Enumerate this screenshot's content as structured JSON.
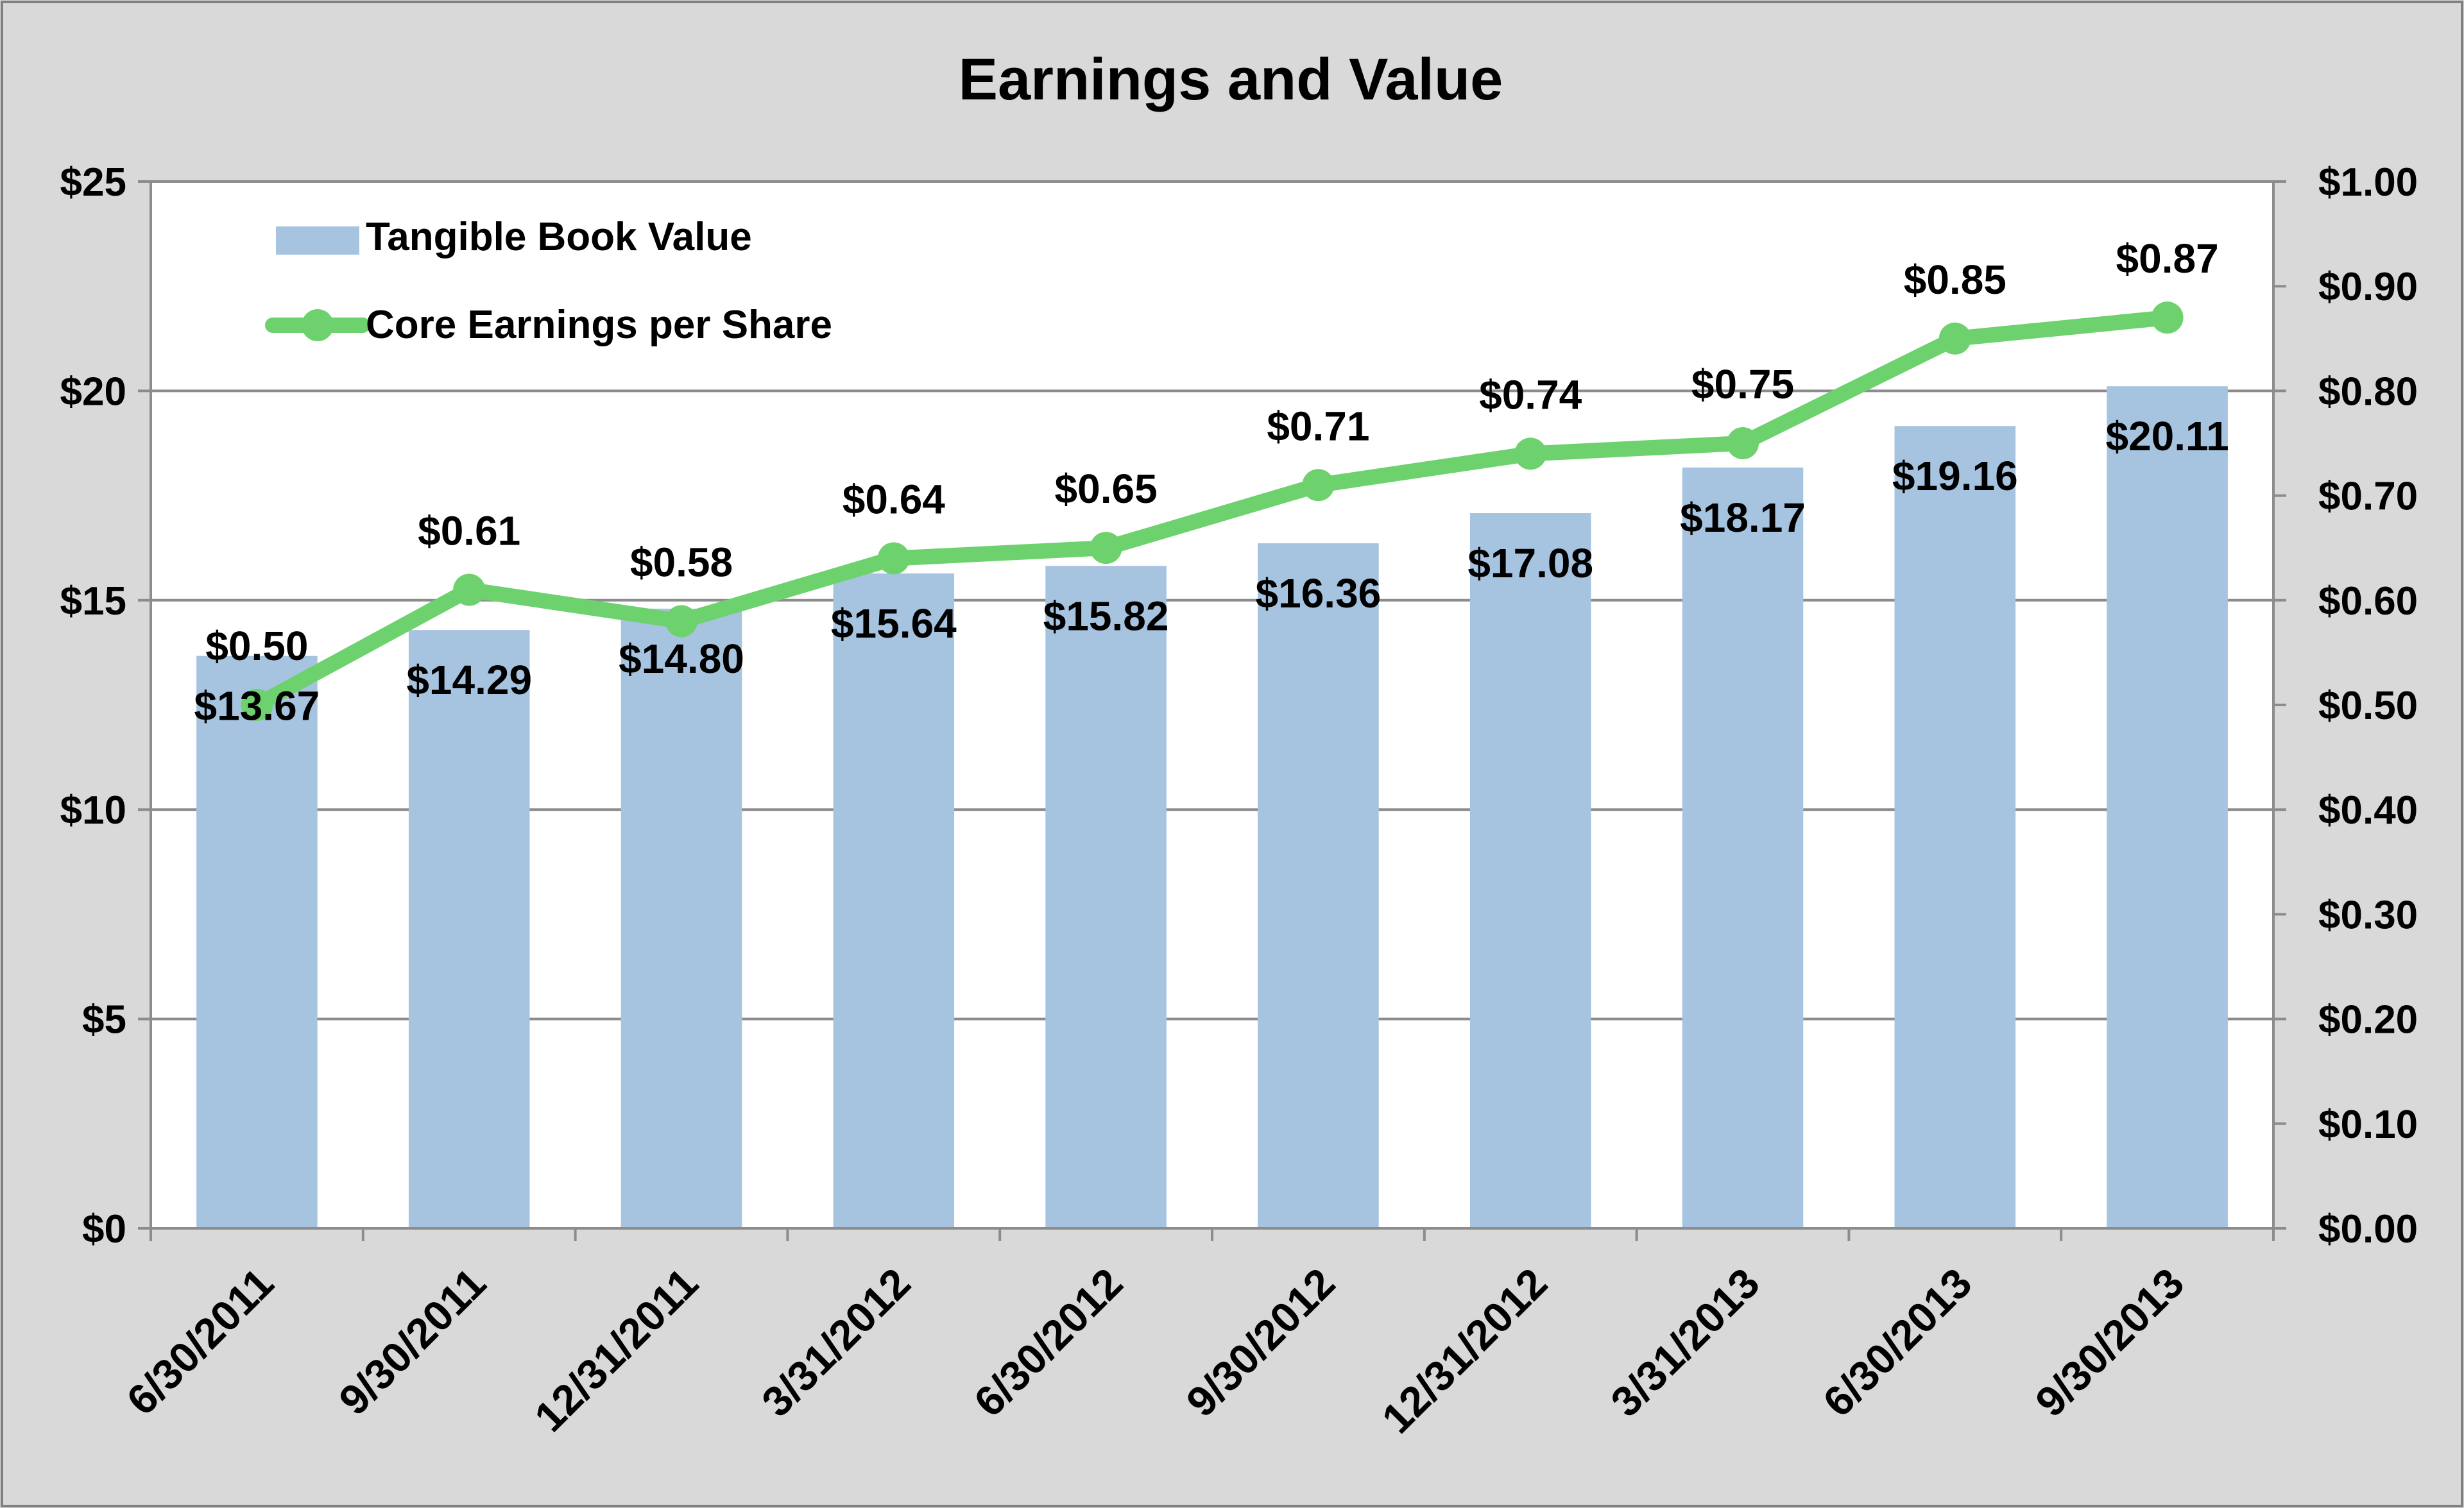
{
  "chart_data": {
    "type": "bar+line",
    "title": "Earnings and Value",
    "categories": [
      "6/30/2011",
      "9/30/2011",
      "12/31/2011",
      "3/31/2012",
      "6/30/2012",
      "9/30/2012",
      "12/31/2012",
      "3/31/2013",
      "6/30/2013",
      "9/30/2013"
    ],
    "series": [
      {
        "name": "Tangible Book Value",
        "type": "bar",
        "axis": "left",
        "values": [
          13.67,
          14.29,
          14.8,
          15.64,
          15.82,
          16.36,
          17.08,
          18.17,
          19.16,
          20.11
        ],
        "labels": [
          "$13.67",
          "$14.29",
          "$14.80",
          "$15.64",
          "$15.82",
          "$16.36",
          "$17.08",
          "$18.17",
          "$19.16",
          "$20.11"
        ],
        "color": "#a6c3e0"
      },
      {
        "name": "Core Earnings per Share",
        "type": "line",
        "axis": "right",
        "values": [
          0.5,
          0.61,
          0.58,
          0.64,
          0.65,
          0.71,
          0.74,
          0.75,
          0.85,
          0.87
        ],
        "labels": [
          "$0.50",
          "$0.61",
          "$0.58",
          "$0.64",
          "$0.65",
          "$0.71",
          "$0.74",
          "$0.75",
          "$0.85",
          "$0.87"
        ],
        "color": "#6dd26d"
      }
    ],
    "y_left": {
      "ylim": [
        0,
        25
      ],
      "ticks": [
        0,
        5,
        10,
        15,
        20,
        25
      ],
      "tick_labels": [
        "$0",
        "$5",
        "$10",
        "$15",
        "$20",
        "$25"
      ]
    },
    "y_right": {
      "ylim": [
        0,
        1.0
      ],
      "ticks": [
        0,
        0.1,
        0.2,
        0.3,
        0.4,
        0.5,
        0.6,
        0.7,
        0.8,
        0.9,
        1.0
      ],
      "tick_labels": [
        "$0.00",
        "$0.10",
        "$0.20",
        "$0.30",
        "$0.40",
        "$0.50",
        "$0.60",
        "$0.70",
        "$0.80",
        "$0.90",
        "$1.00"
      ]
    },
    "grid": true,
    "legend": "top-left inside plot",
    "background": "#d9d9d9",
    "plot_background": "#ffffff"
  }
}
